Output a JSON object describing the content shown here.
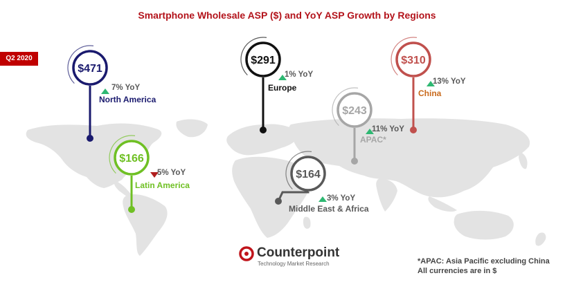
{
  "title": "Smartphone Wholesale ASP ($) and YoY ASP Growth by Regions",
  "period_badge": "Q2 2020",
  "brand": {
    "name": "Counterpoint",
    "tagline": "Technology Market Research",
    "color": "#c0141b"
  },
  "footnotes": [
    "*APAC: Asia Pacific excluding China",
    "All currencies are in $"
  ],
  "chart_data": {
    "type": "map",
    "title": "Smartphone Wholesale ASP ($) and YoY ASP Growth by Regions",
    "period": "Q2 2020",
    "regions": [
      {
        "key": "na",
        "name": "North America",
        "asp": 471,
        "asp_label": "$471",
        "yoy_pct": 7,
        "yoy_label": "7% YoY",
        "direction": "up",
        "color": "#1a1a6e",
        "name_color": "#1a1a6e"
      },
      {
        "key": "eu",
        "name": "Europe",
        "asp": 291,
        "asp_label": "$291",
        "yoy_pct": 1,
        "yoy_label": "1% YoY",
        "direction": "up",
        "color": "#111111",
        "name_color": "#111111"
      },
      {
        "key": "cn",
        "name": "China",
        "asp": 310,
        "asp_label": "$310",
        "yoy_pct": 13,
        "yoy_label": "13% YoY",
        "direction": "up",
        "color": "#c0504d",
        "name_color": "#c96a1c"
      },
      {
        "key": "ap",
        "name": "APAC*",
        "asp": 243,
        "asp_label": "$243",
        "yoy_pct": 11,
        "yoy_label": "11% YoY",
        "direction": "up",
        "color": "#a6a6a6",
        "name_color": "#a6a6a6"
      },
      {
        "key": "la",
        "name": "Latin America",
        "asp": 166,
        "asp_label": "$166",
        "yoy_pct": -5,
        "yoy_label": "5% YoY",
        "direction": "down",
        "color": "#6fc024",
        "name_color": "#6fc024"
      },
      {
        "key": "me",
        "name": "Middle East & Africa",
        "asp": 164,
        "asp_label": "$164",
        "yoy_pct": 3,
        "yoy_label": "3% YoY",
        "direction": "up",
        "color": "#595959",
        "name_color": "#595959"
      }
    ],
    "up_color": "#2eb872",
    "down_color": "#b01e1e"
  }
}
